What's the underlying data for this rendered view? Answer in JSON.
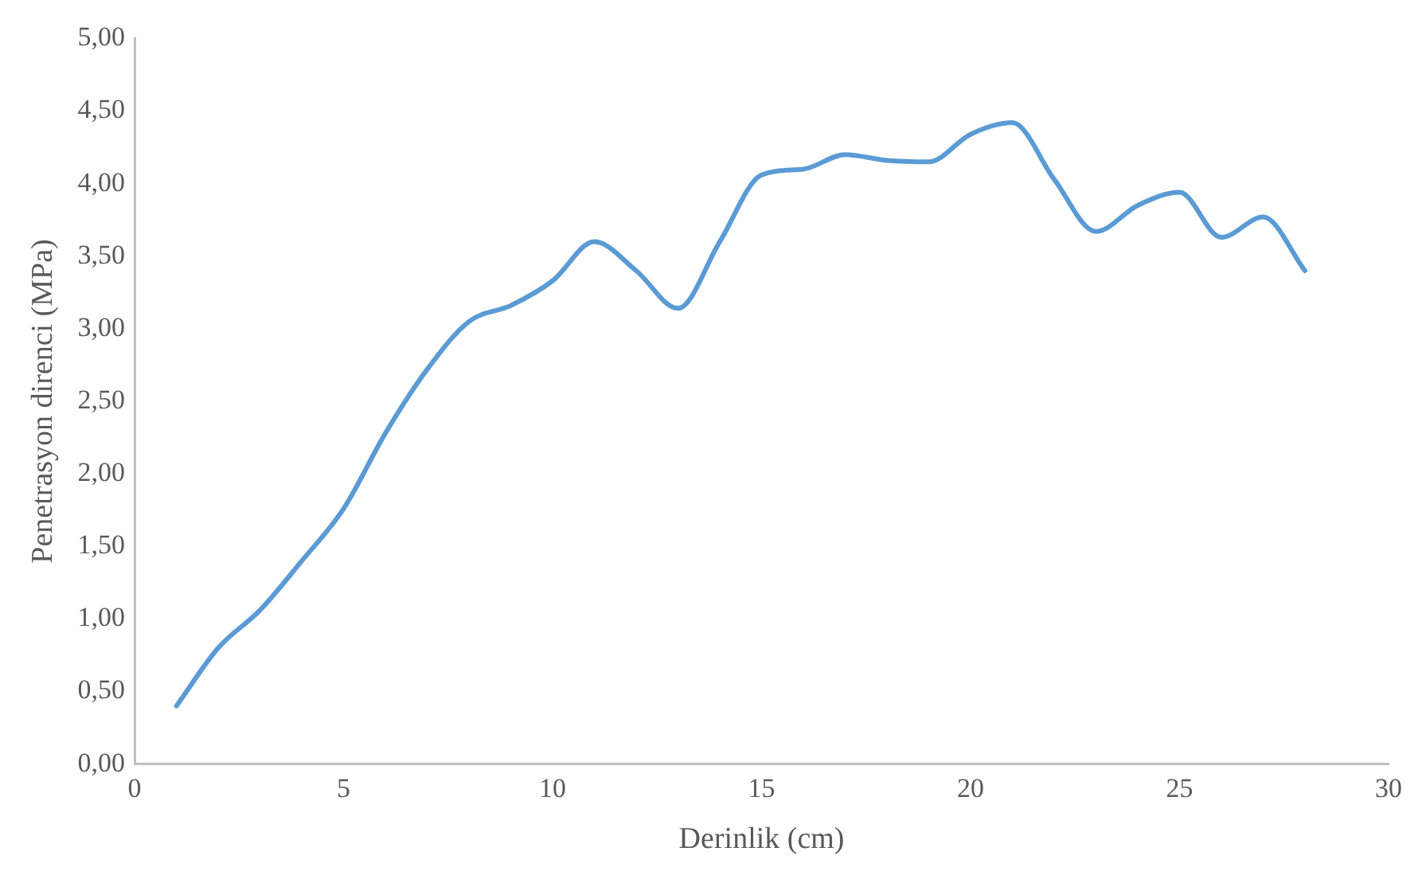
{
  "chart_data": {
    "type": "line",
    "xlabel": "Derinlik (cm)",
    "ylabel": "Penetrasyon direnci (MPa)",
    "x": [
      1,
      2,
      3,
      4,
      5,
      6,
      7,
      8,
      9,
      10,
      11,
      12,
      13,
      14,
      15,
      16,
      17,
      18,
      19,
      20,
      21,
      22,
      23,
      24,
      25,
      26,
      27,
      28
    ],
    "series": [
      {
        "color": "#5b9bd5",
        "values": [
          0.4,
          0.8,
          1.06,
          1.4,
          1.76,
          2.28,
          2.72,
          3.05,
          3.16,
          3.33,
          3.6,
          3.4,
          3.14,
          3.6,
          4.06,
          4.1,
          4.2,
          4.16,
          4.15,
          4.34,
          4.42,
          4.03,
          3.67,
          3.85,
          3.94,
          3.63,
          3.77,
          3.4
        ]
      }
    ],
    "xlim": [
      0,
      30
    ],
    "xticks": [
      0,
      5,
      10,
      15,
      20,
      25,
      30
    ],
    "ylim": [
      0,
      5
    ],
    "yticks": [
      {
        "value": 0,
        "label": "0,00"
      },
      {
        "value": 0.5,
        "label": "0,50"
      },
      {
        "value": 1,
        "label": "1,00"
      },
      {
        "value": 1.5,
        "label": "1,50"
      },
      {
        "value": 2,
        "label": "2,00"
      },
      {
        "value": 2.5,
        "label": "2,50"
      },
      {
        "value": 3,
        "label": "3,00"
      },
      {
        "value": 3.5,
        "label": "3,50"
      },
      {
        "value": 4,
        "label": "4,00"
      },
      {
        "value": 4.5,
        "label": "4,50"
      },
      {
        "value": 5,
        "label": "5,00"
      }
    ],
    "grid": false,
    "legend": false,
    "marker": "none",
    "line_style": "solid"
  }
}
